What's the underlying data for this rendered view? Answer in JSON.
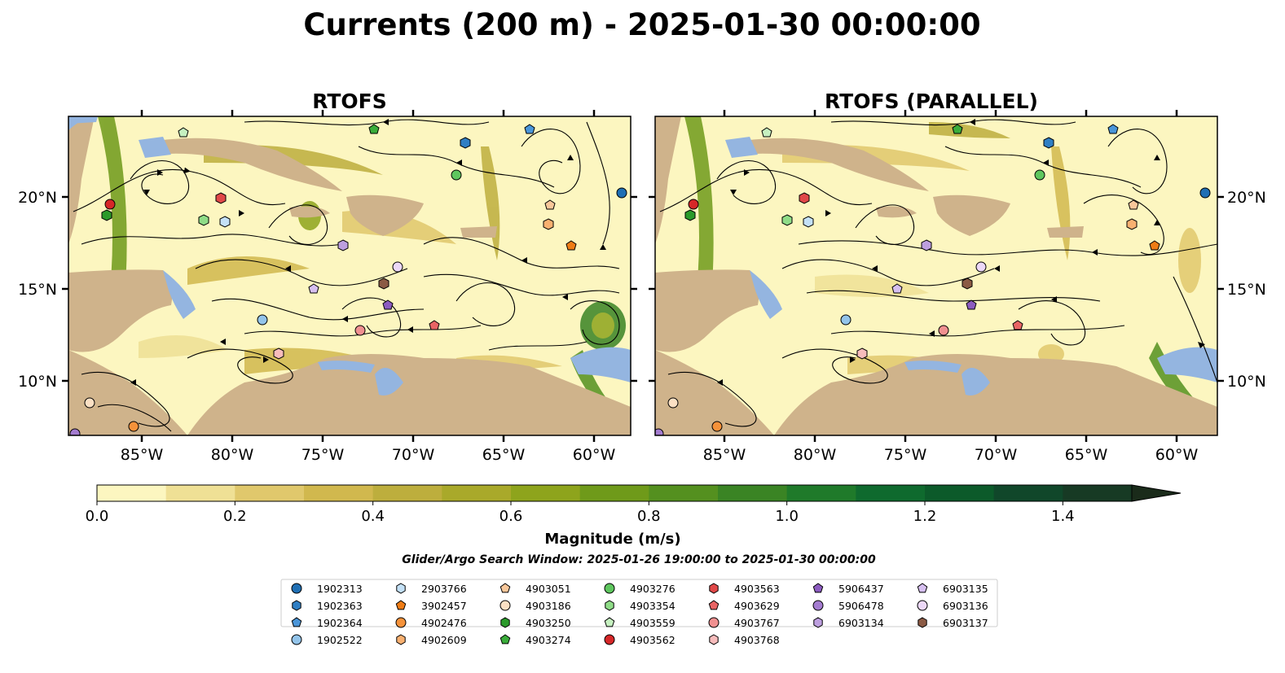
{
  "title": "Currents (200 m) - 2025-01-30 00:00:00",
  "panels": [
    {
      "title": "RTOFS"
    },
    {
      "title": "RTOFS (PARALLEL)"
    }
  ],
  "lon_ticks": [
    "85°W",
    "80°W",
    "75°W",
    "70°W",
    "65°W",
    "60°W"
  ],
  "lat_ticks": [
    "20°N",
    "15°N",
    "10°N"
  ],
  "map_extent": {
    "lon": [
      -89,
      -58
    ],
    "lat": [
      7,
      24.5
    ]
  },
  "colorbar": {
    "label": "Magnitude (m/s)",
    "tick_labels": [
      "0.0",
      "0.2",
      "0.4",
      "0.6",
      "0.8",
      "1.0",
      "1.2",
      "1.4"
    ],
    "range": [
      0,
      1.5
    ],
    "step": 0.1,
    "extend": "max",
    "colors": [
      "#fcf6c0",
      "#efe095",
      "#e0c86c",
      "#d1b84e",
      "#bdae3d",
      "#a9a92a",
      "#8ea41c",
      "#6f9a1a",
      "#54901f",
      "#3a8424",
      "#1f7a2a",
      "#0f6a2e",
      "#0c5a2a",
      "#10472a",
      "#173a24",
      "#1a2b1a"
    ]
  },
  "search_window": "Glider/Argo Search Window: 2025-01-26 19:00:00 to 2025-01-30 00:00:00",
  "colors": {
    "land": "#cfb38b",
    "shallow": "#94b5e0",
    "current_low": "#fcf6c0"
  },
  "legend": [
    [
      {
        "id": "1902313",
        "marker": "circle",
        "color": "#1f6fb4"
      },
      {
        "id": "1902363",
        "marker": "hexagon",
        "color": "#2f7fc4"
      },
      {
        "id": "1902364",
        "marker": "pentagon",
        "color": "#4a95d8"
      },
      {
        "id": "1902522",
        "marker": "circle",
        "color": "#93c4ea"
      }
    ],
    [
      {
        "id": "2903766",
        "marker": "hexagon",
        "color": "#c4e1f7"
      },
      {
        "id": "3902457",
        "marker": "pentagon",
        "color": "#ee7c16"
      },
      {
        "id": "4902476",
        "marker": "circle",
        "color": "#f5923a"
      },
      {
        "id": "4902609",
        "marker": "hexagon",
        "color": "#f8b070"
      }
    ],
    [
      {
        "id": "4903051",
        "marker": "pentagon",
        "color": "#f8c79a"
      },
      {
        "id": "4903186",
        "marker": "circle",
        "color": "#fbe0c4"
      },
      {
        "id": "4903250",
        "marker": "hexagon",
        "color": "#2a9a2a"
      },
      {
        "id": "4903274",
        "marker": "pentagon",
        "color": "#3aad3a"
      }
    ],
    [
      {
        "id": "4903276",
        "marker": "circle",
        "color": "#5ec65e"
      },
      {
        "id": "4903354",
        "marker": "hexagon",
        "color": "#8fdc87"
      },
      {
        "id": "4903559",
        "marker": "pentagon",
        "color": "#c5f0bf"
      },
      {
        "id": "4903562",
        "marker": "circle",
        "color": "#d62728"
      }
    ],
    [
      {
        "id": "4903563",
        "marker": "hexagon",
        "color": "#e04848"
      },
      {
        "id": "4903629",
        "marker": "pentagon",
        "color": "#e86464"
      },
      {
        "id": "4903767",
        "marker": "circle",
        "color": "#f09090"
      },
      {
        "id": "4903768",
        "marker": "hexagon",
        "color": "#f7bcbc"
      }
    ],
    [
      {
        "id": "5906437",
        "marker": "pentagon",
        "color": "#8c5bc0"
      },
      {
        "id": "5906478",
        "marker": "circle",
        "color": "#a47cd0"
      },
      {
        "id": "6903134",
        "marker": "hexagon",
        "color": "#bd9fdf"
      }
    ],
    [
      {
        "id": "6903135",
        "marker": "pentagon",
        "color": "#d6bff0"
      },
      {
        "id": "6903136",
        "marker": "circle",
        "color": "#ecd8f8"
      },
      {
        "id": "6903137",
        "marker": "hexagon",
        "color": "#8b5a44"
      }
    ]
  ]
}
